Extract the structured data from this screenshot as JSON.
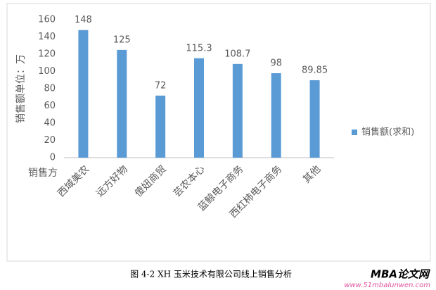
{
  "chart_data": {
    "type": "bar",
    "y_axis_label": "销售额单位：万",
    "x_axis_label": "销售方",
    "categories": [
      "西域美农",
      "远方好物",
      "傻妞商贸",
      "芸农本心",
      "蓝鲸电子商务",
      "西红柿电子商务",
      "其他"
    ],
    "series": [
      {
        "name": "销售额(求和)",
        "color": "#5b9bd5",
        "values": [
          148,
          125,
          72,
          115.3,
          108.7,
          98,
          89.85
        ]
      }
    ],
    "ylim": [
      0,
      160
    ],
    "yticks": [
      0,
      20,
      40,
      60,
      80,
      100,
      120,
      140,
      160
    ],
    "grid": false,
    "legend": "right"
  },
  "caption": "图 4-2 XH 玉米技术有限公司线上销售分析",
  "watermark": {
    "title": "MBA论文网",
    "url": "www.51mbalunwen.com"
  }
}
